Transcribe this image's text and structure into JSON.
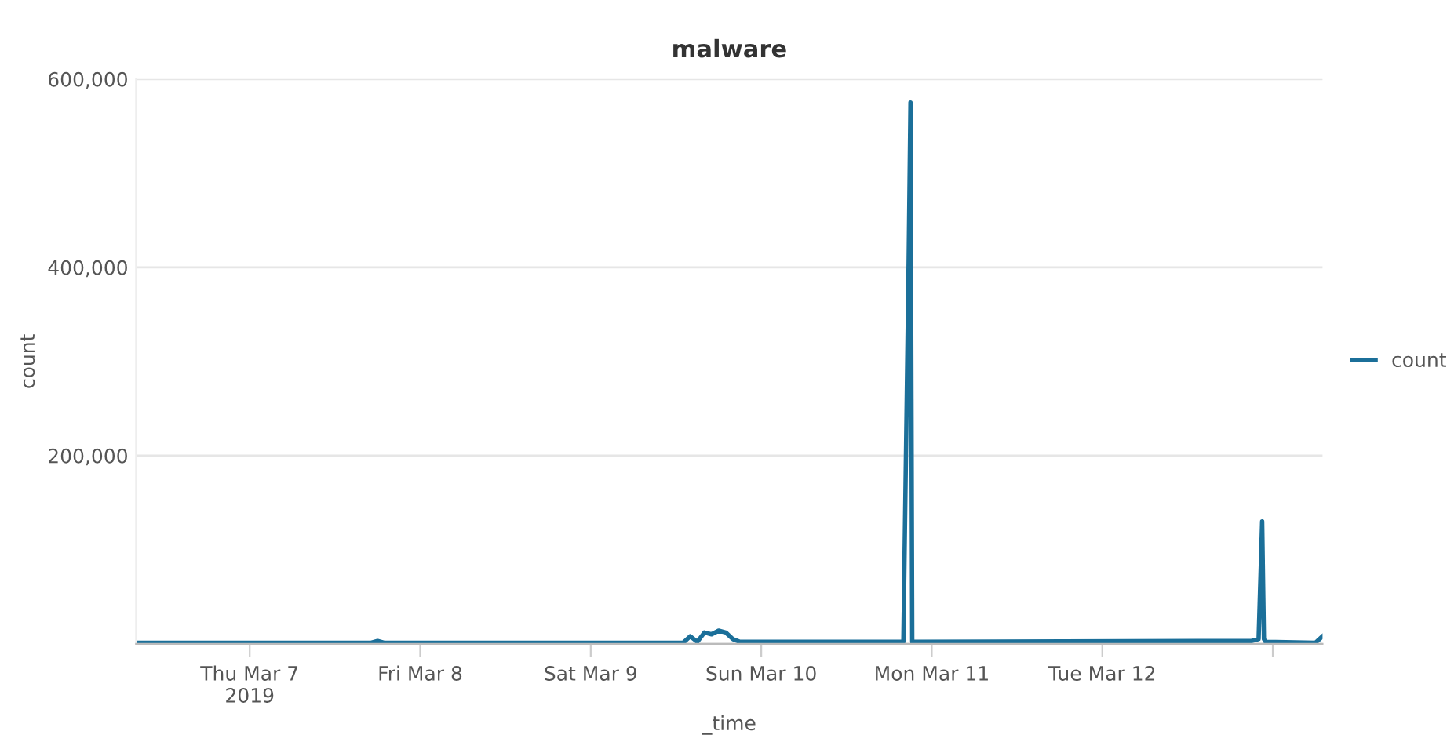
{
  "chart_data": {
    "type": "line",
    "title": "malware",
    "xlabel": "_time",
    "ylabel": "count",
    "x": [
      "2019-03-06T08:00",
      "2019-03-07T17:00",
      "2019-03-07T18:00",
      "2019-03-07T19:00",
      "2019-03-09T13:00",
      "2019-03-09T14:00",
      "2019-03-09T15:00",
      "2019-03-09T16:00",
      "2019-03-09T17:00",
      "2019-03-09T18:00",
      "2019-03-09T19:00",
      "2019-03-09T20:00",
      "2019-03-09T21:00",
      "2019-03-10T20:00",
      "2019-03-10T20:45",
      "2019-03-10T21:00",
      "2019-03-10T21:15",
      "2019-03-12T21:00",
      "2019-03-12T22:00",
      "2019-03-12T22:30",
      "2019-03-12T22:45",
      "2019-03-12T23:00",
      "2019-03-13T06:00",
      "2019-03-13T07:00"
    ],
    "series": [
      {
        "name": "count",
        "color": "#1b6f99",
        "values": [
          1000,
          1000,
          3000,
          1000,
          1000,
          8000,
          2000,
          12000,
          10000,
          14000,
          12000,
          5000,
          2000,
          2000,
          410000,
          575000,
          2000,
          3000,
          5000,
          130000,
          5000,
          2000,
          1000,
          8000
        ]
      }
    ],
    "xlim": [
      "2019-03-06T08:00",
      "2019-03-13T07:00"
    ],
    "xticks": [
      {
        "value": "2019-03-07",
        "label": "Thu Mar 7\n2019"
      },
      {
        "value": "2019-03-08",
        "label": "Fri Mar 8"
      },
      {
        "value": "2019-03-09",
        "label": "Sat Mar 9"
      },
      {
        "value": "2019-03-10",
        "label": "Sun Mar 10"
      },
      {
        "value": "2019-03-11",
        "label": "Mon Mar 11"
      },
      {
        "value": "2019-03-12",
        "label": "Tue Mar 12"
      },
      {
        "value": "2019-03-13",
        "label": null
      }
    ],
    "ylim": [
      0,
      600000
    ],
    "yticks": [
      {
        "value": 0,
        "label": null
      },
      {
        "value": 200000,
        "label": "200,000"
      },
      {
        "value": 400000,
        "label": "400,000"
      },
      {
        "value": 600000,
        "label": "600,000"
      }
    ],
    "grid": "y",
    "legend": "right",
    "marker": "none",
    "line_style": "solid"
  }
}
